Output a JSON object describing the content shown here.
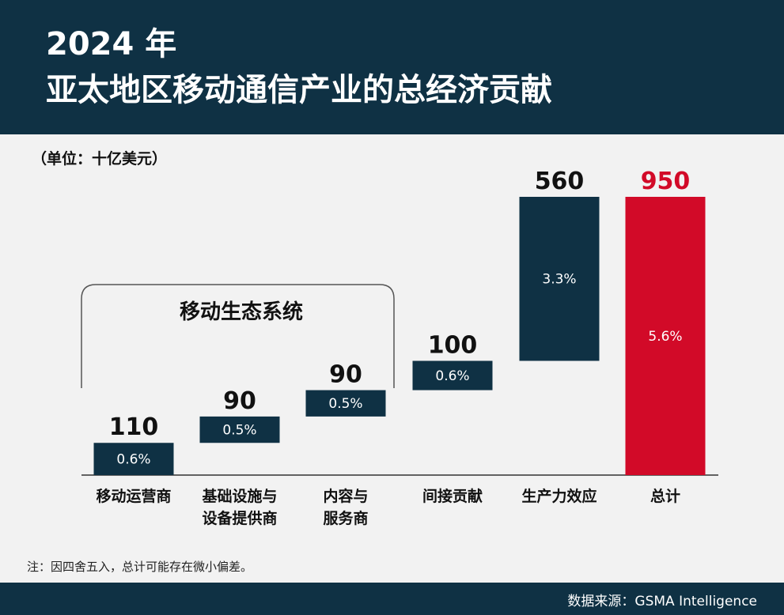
{
  "header": {
    "title_line1": "2024 年",
    "title_line2": "亚太地区移动通信产业的总经济贡献"
  },
  "unit_label": "（单位：十亿美元）",
  "group_label": "移动生态系统",
  "note": "注：因四舍五入，总计可能存在微小偏差。",
  "source": "数据来源：GSMA Intelligence",
  "colors": {
    "header": "#0f3144",
    "bar": "#0f3144",
    "total": "#d20a28",
    "background": "#f2f2f2"
  },
  "chart_data": {
    "type": "bar",
    "subtype": "waterfall",
    "categories": [
      [
        "移动运营商"
      ],
      [
        "基础设施与",
        "设备提供商"
      ],
      [
        "内容与",
        "服务商"
      ],
      [
        "间接贡献"
      ],
      [
        "生产力效应"
      ],
      [
        "总计"
      ]
    ],
    "values": [
      110,
      90,
      90,
      100,
      560,
      950
    ],
    "value_labels": [
      "110",
      "90",
      "90",
      "100",
      "560",
      "950"
    ],
    "percent_labels": [
      "0.6%",
      "0.5%",
      "0.5%",
      "0.6%",
      "3.3%",
      "5.6%"
    ],
    "is_total": [
      false,
      false,
      false,
      false,
      false,
      true
    ],
    "ylim": [
      0,
      950
    ],
    "grid": false,
    "legend": "none"
  }
}
